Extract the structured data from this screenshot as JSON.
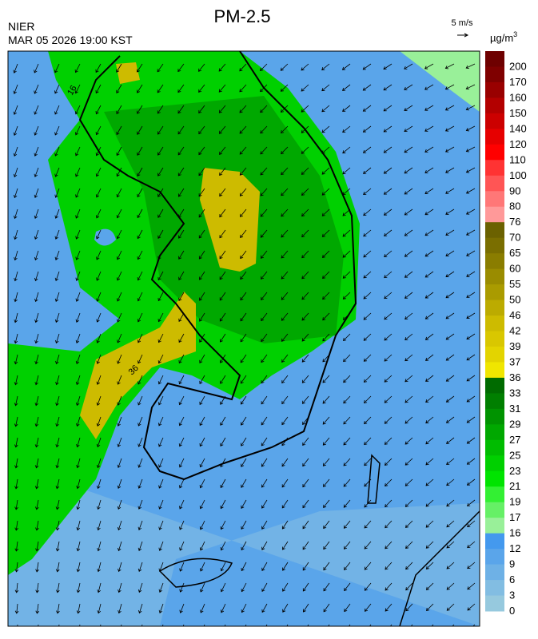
{
  "header": {
    "title": "PM-2.5",
    "agency": "NIER",
    "datetime": "MAR 05 2026 19:00 KST",
    "wind_scale": "5 m/s"
  },
  "colorbar": {
    "unit": "µg/m",
    "unit_power": "3",
    "labels": [
      "200",
      "170",
      "160",
      "150",
      "140",
      "120",
      "110",
      "100",
      "90",
      "80",
      "76",
      "70",
      "65",
      "60",
      "55",
      "50",
      "46",
      "42",
      "39",
      "37",
      "36",
      "33",
      "31",
      "29",
      "27",
      "25",
      "23",
      "21",
      "19",
      "17",
      "16",
      "12",
      "9",
      "6",
      "3",
      "0"
    ],
    "colors": [
      "#6e0000",
      "#7f0000",
      "#990000",
      "#b30000",
      "#cc0000",
      "#e60000",
      "#ff0000",
      "#ff3333",
      "#ff5555",
      "#ff7777",
      "#ff9999",
      "#6b6100",
      "#7a6e00",
      "#8a7d00",
      "#9a8c00",
      "#aa9b00",
      "#bcab00",
      "#cdbb00",
      "#d9c700",
      "#e3d400",
      "#f0e600",
      "#006b00",
      "#007f00",
      "#009300",
      "#00a800",
      "#00bc00",
      "#00d000",
      "#00e400",
      "#33f033",
      "#66f066",
      "#99f099",
      "#4499ee",
      "#5aa5ea",
      "#6eb1e6",
      "#82bde2",
      "#96c9de"
    ]
  },
  "contour_labels": [
    "16",
    "36"
  ]
}
